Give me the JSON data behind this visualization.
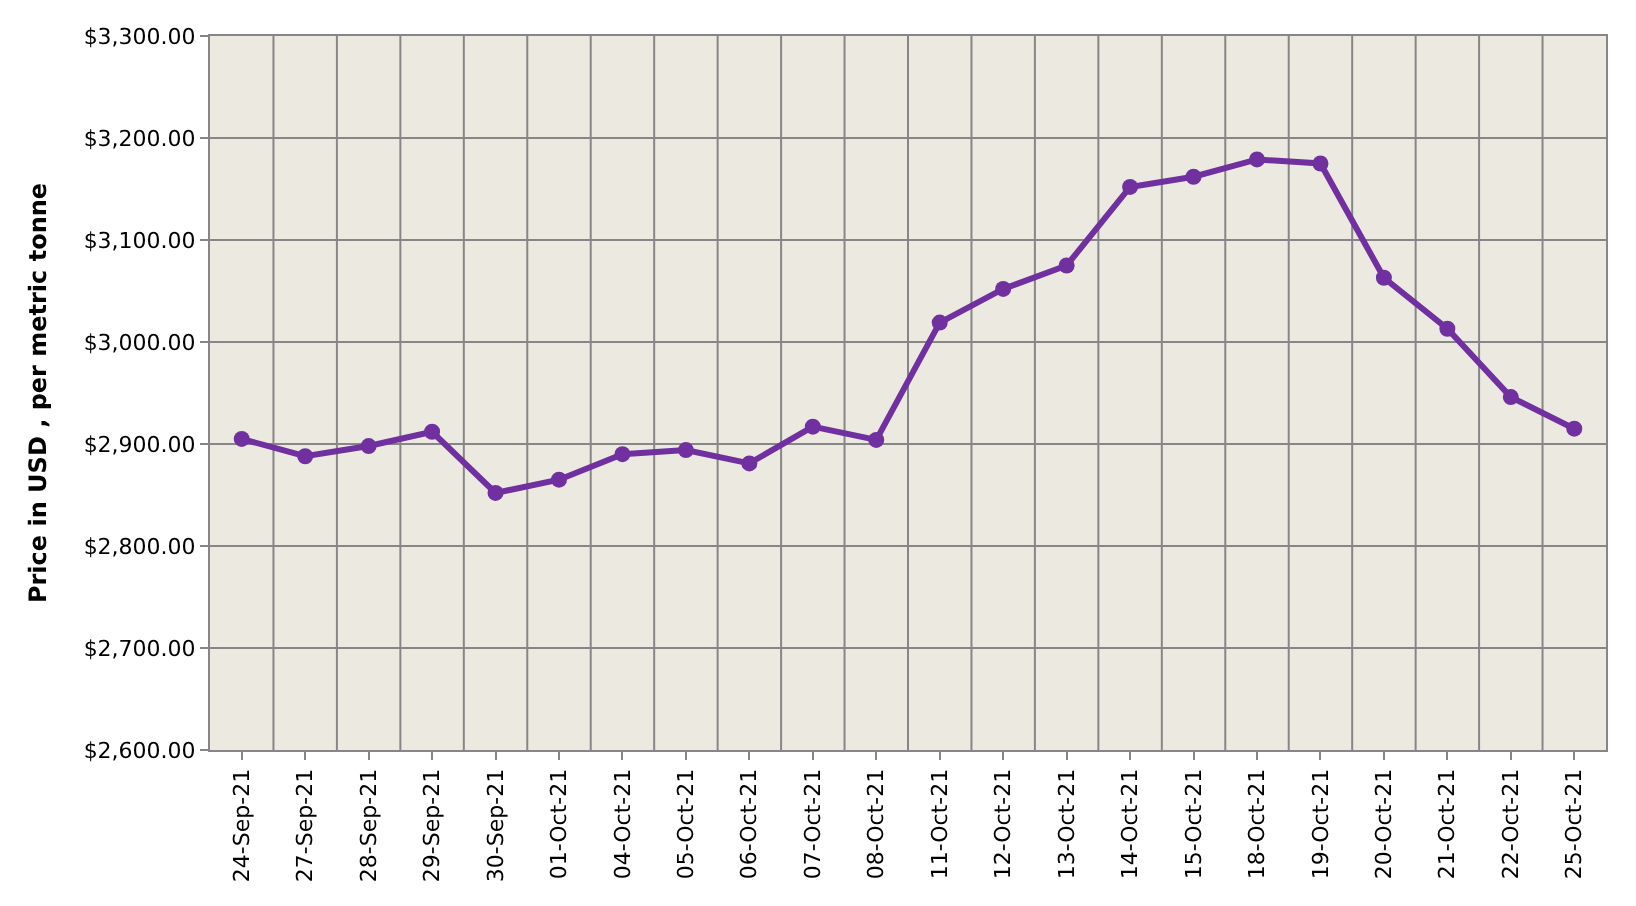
{
  "chart_data": {
    "type": "line",
    "ylabel": "Price in USD , per metric tonne",
    "categories": [
      "24-Sep-21",
      "27-Sep-21",
      "28-Sep-21",
      "29-Sep-21",
      "30-Sep-21",
      "01-Oct-21",
      "04-Oct-21",
      "05-Oct-21",
      "06-Oct-21",
      "07-Oct-21",
      "08-Oct-21",
      "11-Oct-21",
      "12-Oct-21",
      "13-Oct-21",
      "14-Oct-21",
      "15-Oct-21",
      "18-Oct-21",
      "19-Oct-21",
      "20-Oct-21",
      "21-Oct-21",
      "22-Oct-21",
      "25-Oct-21"
    ],
    "series": [
      {
        "color": "#7030a0",
        "values": [
          2905,
          2888,
          2898,
          2912,
          2852,
          2865,
          2890,
          2894,
          2881,
          2917,
          2904,
          3019,
          3052,
          3075,
          3152,
          3162,
          3179,
          3175,
          3063,
          3013,
          2946,
          2915
        ]
      }
    ],
    "ylim": [
      2600,
      3300
    ],
    "yticks": [
      {
        "value": 2600,
        "label": "$2,600.00"
      },
      {
        "value": 2700,
        "label": "$2,700.00"
      },
      {
        "value": 2800,
        "label": "$2,800.00"
      },
      {
        "value": 2900,
        "label": "$2,900.00"
      },
      {
        "value": 3000,
        "label": "$3,000.00"
      },
      {
        "value": 3100,
        "label": "$3,100.00"
      },
      {
        "value": 3200,
        "label": "$3,200.00"
      },
      {
        "value": 3300,
        "label": "$3,300.00"
      }
    ],
    "grid": true,
    "marker": "circle",
    "line_style": "solid",
    "legend": false
  }
}
